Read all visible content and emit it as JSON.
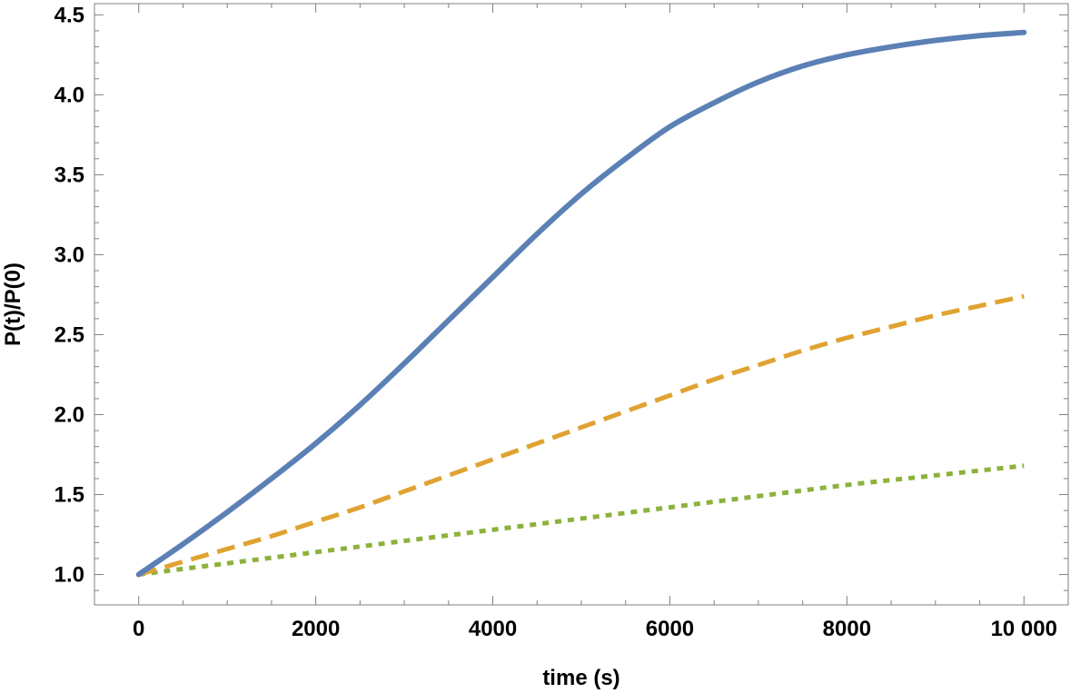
{
  "chart_data": {
    "type": "line",
    "title": "",
    "xlabel": "time (s)",
    "ylabel": "P(t)/P(0)",
    "xlim": [
      -500,
      10500
    ],
    "ylim": [
      0.81,
      4.57
    ],
    "x_ticks": [
      0,
      2000,
      4000,
      6000,
      8000,
      10000
    ],
    "x_tick_labels": [
      "0",
      "2000",
      "4000",
      "6000",
      "8000",
      "10 000"
    ],
    "y_ticks": [
      1.0,
      1.5,
      2.0,
      2.5,
      3.0,
      3.5,
      4.0,
      4.5
    ],
    "y_tick_labels": [
      "1.0",
      "1.5",
      "2.0",
      "2.5",
      "3.0",
      "3.5",
      "4.0",
      "4.5"
    ],
    "grid": false,
    "legend": "none",
    "series": [
      {
        "color": "#5b80b5",
        "style": "solid",
        "x": [
          0,
          500,
          1000,
          1500,
          2000,
          2500,
          3000,
          3500,
          4000,
          4500,
          5000,
          5500,
          6000,
          6500,
          7000,
          7500,
          8000,
          8500,
          9000,
          9500,
          10000
        ],
        "y": [
          1.0,
          1.19,
          1.39,
          1.6,
          1.82,
          2.06,
          2.32,
          2.59,
          2.86,
          3.13,
          3.38,
          3.6,
          3.8,
          3.95,
          4.08,
          4.18,
          4.25,
          4.3,
          4.34,
          4.37,
          4.39
        ]
      },
      {
        "color": "#e0a231",
        "style": "dashed",
        "x": [
          0,
          500,
          1000,
          1500,
          2000,
          2500,
          3000,
          3500,
          4000,
          4500,
          5000,
          5500,
          6000,
          6500,
          7000,
          7500,
          8000,
          8500,
          9000,
          9500,
          10000
        ],
        "y": [
          1.0,
          1.08,
          1.16,
          1.24,
          1.33,
          1.42,
          1.52,
          1.62,
          1.72,
          1.82,
          1.92,
          2.02,
          2.12,
          2.22,
          2.31,
          2.4,
          2.48,
          2.55,
          2.62,
          2.68,
          2.74
        ]
      },
      {
        "color": "#8cb23c",
        "style": "dotted",
        "x": [
          0,
          1000,
          2000,
          3000,
          4000,
          5000,
          6000,
          7000,
          8000,
          9000,
          10000
        ],
        "y": [
          1.0,
          1.07,
          1.14,
          1.21,
          1.28,
          1.35,
          1.42,
          1.49,
          1.56,
          1.62,
          1.68
        ]
      }
    ]
  }
}
